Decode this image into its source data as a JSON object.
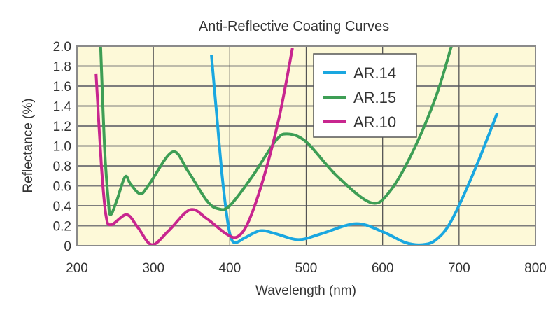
{
  "chart_data": {
    "type": "line",
    "title": "Anti-Reflective Coating Curves",
    "xlabel": "Wavelength (nm)",
    "ylabel": "Reflectance (%)",
    "xlim": [
      200,
      800
    ],
    "ylim": [
      0,
      2.0
    ],
    "x_ticks": [
      200,
      300,
      400,
      500,
      600,
      700,
      800
    ],
    "x_tick_labels": [
      "200",
      "300",
      "400",
      "500",
      "600",
      "700",
      "800"
    ],
    "y_ticks": [
      0,
      0.2,
      0.4,
      0.6,
      0.8,
      1.0,
      1.2,
      1.4,
      1.6,
      1.8,
      2.0
    ],
    "y_tick_labels": [
      "0",
      "0.2",
      "0.4",
      "0.6",
      "0.8",
      "1.0",
      "1.2",
      "1.4",
      "1.6",
      "1.8",
      "2.0"
    ],
    "grid": true,
    "legend_position": "top-center-right",
    "background_color": "#fdf9d8",
    "series": [
      {
        "name": "AR.14",
        "color": "#1aa7e0",
        "x": [
          376,
          383,
          390,
          397,
          402,
          408,
          420,
          440,
          460,
          490,
          520,
          565,
          600,
          630,
          652,
          670,
          690,
          720,
          750
        ],
        "y": [
          1.91,
          1.3,
          0.7,
          0.25,
          0.07,
          0.03,
          0.08,
          0.15,
          0.12,
          0.06,
          0.12,
          0.22,
          0.14,
          0.03,
          0.01,
          0.06,
          0.25,
          0.75,
          1.33
        ]
      },
      {
        "name": "AR.15",
        "color": "#3e9e55",
        "x": [
          231,
          236,
          241,
          244,
          252,
          263,
          270,
          283,
          295,
          325,
          345,
          370,
          385,
          400,
          430,
          460,
          475,
          500,
          540,
          585,
          610,
          640,
          670,
          690
        ],
        "y": [
          2.0,
          1.0,
          0.45,
          0.31,
          0.45,
          0.69,
          0.62,
          0.52,
          0.62,
          0.94,
          0.75,
          0.45,
          0.37,
          0.4,
          0.7,
          1.05,
          1.12,
          1.04,
          0.7,
          0.43,
          0.55,
          0.95,
          1.5,
          2.0
        ]
      },
      {
        "name": "AR.10",
        "color": "#c8268f",
        "x": [
          225,
          232,
          238,
          245,
          265,
          280,
          298,
          320,
          348,
          370,
          395,
          410,
          425,
          445,
          465,
          482
        ],
        "y": [
          1.72,
          0.8,
          0.3,
          0.21,
          0.31,
          0.18,
          0.01,
          0.15,
          0.36,
          0.27,
          0.12,
          0.09,
          0.25,
          0.7,
          1.3,
          1.98
        ]
      }
    ]
  }
}
